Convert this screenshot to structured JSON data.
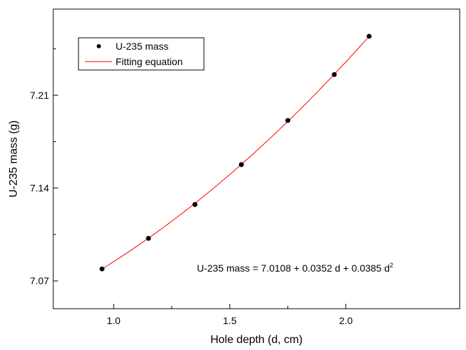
{
  "chart_data": {
    "type": "scatter",
    "title": "",
    "xlabel": "Hole depth (d, cm)",
    "ylabel": "U-235 mass (g)",
    "xlim": [
      0.74,
      2.49
    ],
    "ylim": [
      7.049,
      7.275
    ],
    "xticks": [
      1.0,
      1.5,
      2.0
    ],
    "xtick_labels": [
      "1.0",
      "1.5",
      "2.0"
    ],
    "yticks": [
      7.07,
      7.14,
      7.21
    ],
    "ytick_labels": [
      "7.07",
      "7.14",
      "7.21"
    ],
    "grid": false,
    "legend_position": "top-left",
    "series": [
      {
        "name": "U-235 mass",
        "kind": "scatter",
        "color": "#000000",
        "x": [
          0.95,
          1.15,
          1.35,
          1.55,
          1.75,
          1.95,
          2.1
        ],
        "y": [
          7.079,
          7.1021,
          7.1276,
          7.1577,
          7.191,
          7.2256,
          7.2545
        ]
      },
      {
        "name": "Fitting equation",
        "kind": "line",
        "color": "#ff0000",
        "equation": {
          "a": 7.0108,
          "b": 0.0352,
          "c": 0.0385
        },
        "x_range": [
          0.95,
          2.1
        ]
      }
    ],
    "annotation": {
      "prefix": "U-235 mass = 7.0108 + 0.0352 d + 0.0385 d",
      "superscript": "2"
    }
  }
}
